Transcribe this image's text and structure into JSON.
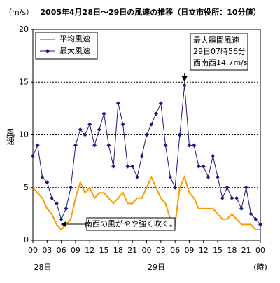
{
  "chart_data": {
    "type": "line",
    "title": "2005年4月28日～29日の風速の推移（日立市役所：10分値）",
    "y_unit": "（m/s）",
    "y_label": "風速",
    "x_unit": "(時)",
    "x": [
      0,
      1,
      2,
      3,
      4,
      5,
      6,
      7,
      8,
      9,
      10,
      11,
      12,
      13,
      14,
      15,
      16,
      17,
      18,
      19,
      20,
      21,
      22,
      23,
      24,
      25,
      26,
      27,
      28,
      29,
      30,
      31,
      32,
      33,
      34,
      35,
      36,
      37,
      38,
      39,
      40,
      41,
      42,
      43,
      44,
      45,
      46,
      47,
      48
    ],
    "series": [
      {
        "name": "平均風速",
        "color": "#ff9900",
        "marker": false,
        "values": [
          5,
          4.5,
          4,
          3,
          2.5,
          1.5,
          1,
          1.5,
          2,
          4,
          5.5,
          4.5,
          5,
          4,
          4.5,
          4.5,
          4,
          3.5,
          4,
          4.5,
          3.5,
          3.5,
          4,
          4,
          5,
          6,
          5,
          4,
          3.5,
          2,
          1.5,
          5,
          6,
          4.5,
          4,
          3,
          3,
          3,
          3,
          2.5,
          2,
          2,
          2.5,
          2,
          1.5,
          1.5,
          1.5,
          1,
          1
        ]
      },
      {
        "name": "最大風速",
        "color": "#1a1a80",
        "marker": true,
        "values": [
          8,
          9,
          6,
          5.5,
          4,
          3.5,
          2,
          3,
          5,
          9,
          10.5,
          10,
          11,
          9,
          10.5,
          12,
          9,
          7,
          13,
          11,
          7,
          7,
          6,
          8,
          10,
          11,
          12,
          13,
          9,
          6,
          5,
          10,
          14.7,
          9,
          9,
          7,
          7,
          6,
          8,
          6,
          4,
          5,
          4,
          4,
          3,
          5,
          2.5,
          2,
          1.5
        ]
      }
    ],
    "xlim": [
      0,
      48
    ],
    "xticks": [
      {
        "value": 0,
        "label": "00"
      },
      {
        "value": 3,
        "label": "03"
      },
      {
        "value": 6,
        "label": "06"
      },
      {
        "value": 9,
        "label": "09"
      },
      {
        "value": 12,
        "label": "12"
      },
      {
        "value": 15,
        "label": "15"
      },
      {
        "value": 18,
        "label": "18"
      },
      {
        "value": 21,
        "label": "21"
      },
      {
        "value": 24,
        "label": "00"
      },
      {
        "value": 27,
        "label": "03"
      },
      {
        "value": 30,
        "label": "06"
      },
      {
        "value": 33,
        "label": "09"
      },
      {
        "value": 36,
        "label": "12"
      },
      {
        "value": 39,
        "label": "15"
      },
      {
        "value": 42,
        "label": "18"
      },
      {
        "value": 45,
        "label": "21"
      },
      {
        "value": 48,
        "label": "00"
      }
    ],
    "dates": [
      {
        "value": 0,
        "label": "28日"
      },
      {
        "value": 24,
        "label": "29日"
      }
    ],
    "ylim": [
      0,
      20
    ],
    "yticks": [
      0,
      5,
      10,
      15,
      20
    ],
    "grid": true,
    "legend": "upper left",
    "peak_note": [
      "最大瞬間風速",
      "29日07時56分",
      "西南西14.7m/s"
    ],
    "note": "南西の風がやや強く吹く。"
  }
}
